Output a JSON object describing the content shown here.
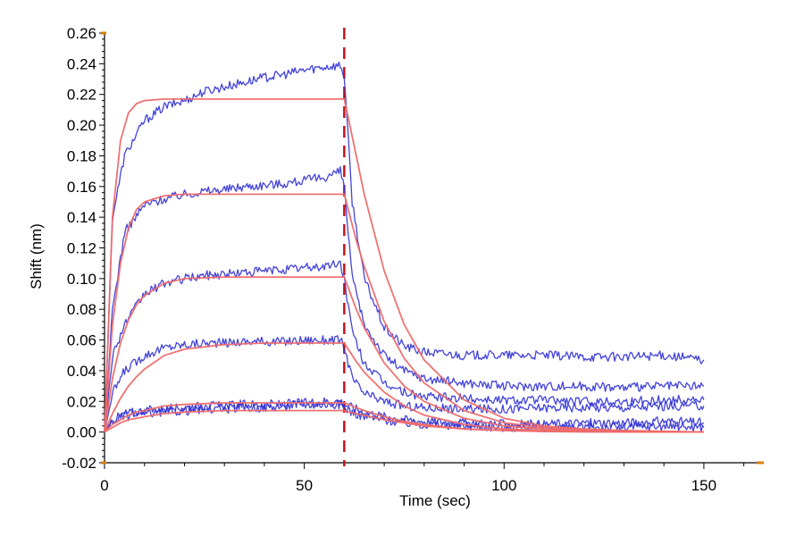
{
  "chart_data": {
    "type": "line",
    "title": "",
    "xlabel": "Time (sec)",
    "ylabel": "Shift (nm)",
    "xlim": [
      0,
      165
    ],
    "ylim": [
      -0.02,
      0.26
    ],
    "xticks": [
      0,
      50,
      100,
      150
    ],
    "yticks": [
      -0.02,
      0.0,
      0.02,
      0.04,
      0.06,
      0.08,
      0.1,
      0.12,
      0.14,
      0.16,
      0.18,
      0.2,
      0.22,
      0.24,
      0.26
    ],
    "grid": false,
    "legend": "none",
    "association_end_marker_x": 60,
    "colors": {
      "measured": "#2f2fd6",
      "fit": "#ee6a6a",
      "marker": "#c0141e",
      "axis_end_ticks": "#e07b00"
    },
    "series": [
      {
        "kind": "measured",
        "x": [
          0,
          2,
          5,
          10,
          15,
          20,
          25,
          30,
          35,
          40,
          45,
          50,
          55,
          59,
          60,
          62,
          65,
          70,
          75,
          80,
          90,
          100,
          110,
          120,
          130,
          140,
          150
        ],
        "y": [
          0.0,
          0.14,
          0.18,
          0.203,
          0.212,
          0.216,
          0.222,
          0.225,
          0.228,
          0.231,
          0.233,
          0.236,
          0.238,
          0.239,
          0.232,
          0.15,
          0.1,
          0.068,
          0.056,
          0.052,
          0.05,
          0.05,
          0.05,
          0.049,
          0.049,
          0.05,
          0.047
        ]
      },
      {
        "kind": "measured",
        "x": [
          0,
          2,
          5,
          10,
          15,
          20,
          25,
          30,
          35,
          40,
          45,
          50,
          55,
          59,
          60,
          62,
          65,
          70,
          75,
          80,
          90,
          100,
          110,
          120,
          130,
          140,
          150
        ],
        "y": [
          0.0,
          0.08,
          0.13,
          0.148,
          0.152,
          0.155,
          0.157,
          0.158,
          0.16,
          0.161,
          0.162,
          0.164,
          0.166,
          0.17,
          0.16,
          0.1,
          0.07,
          0.05,
          0.04,
          0.035,
          0.032,
          0.03,
          0.03,
          0.03,
          0.029,
          0.03,
          0.03
        ]
      },
      {
        "kind": "measured",
        "x": [
          0,
          2,
          5,
          10,
          15,
          20,
          25,
          30,
          35,
          40,
          45,
          50,
          55,
          59,
          60,
          62,
          65,
          70,
          75,
          80,
          90,
          100,
          110,
          120,
          130,
          140,
          150
        ],
        "y": [
          0.0,
          0.05,
          0.07,
          0.09,
          0.097,
          0.1,
          0.102,
          0.103,
          0.104,
          0.105,
          0.106,
          0.107,
          0.108,
          0.11,
          0.1,
          0.065,
          0.045,
          0.032,
          0.026,
          0.023,
          0.022,
          0.021,
          0.021,
          0.02,
          0.02,
          0.021,
          0.021
        ]
      },
      {
        "kind": "measured",
        "x": [
          0,
          2,
          5,
          10,
          15,
          20,
          25,
          30,
          35,
          40,
          45,
          50,
          55,
          59,
          60,
          62,
          65,
          70,
          75,
          80,
          90,
          100,
          110,
          120,
          130,
          140,
          150
        ],
        "y": [
          0.0,
          0.025,
          0.04,
          0.05,
          0.055,
          0.057,
          0.058,
          0.058,
          0.059,
          0.059,
          0.059,
          0.06,
          0.06,
          0.06,
          0.055,
          0.035,
          0.025,
          0.02,
          0.017,
          0.016,
          0.015,
          0.015,
          0.016,
          0.016,
          0.016,
          0.017,
          0.017
        ]
      },
      {
        "kind": "measured",
        "x": [
          0,
          2,
          5,
          10,
          15,
          20,
          25,
          30,
          35,
          40,
          45,
          50,
          55,
          59,
          60,
          62,
          65,
          70,
          75,
          80,
          90,
          100,
          110,
          120,
          130,
          140,
          150
        ],
        "y": [
          0.0,
          0.008,
          0.012,
          0.014,
          0.015,
          0.016,
          0.017,
          0.017,
          0.018,
          0.018,
          0.018,
          0.019,
          0.02,
          0.02,
          0.018,
          0.016,
          0.013,
          0.01,
          0.008,
          0.007,
          0.006,
          0.005,
          0.005,
          0.006,
          0.006,
          0.007,
          0.006
        ]
      },
      {
        "kind": "measured",
        "x": [
          0,
          2,
          5,
          10,
          15,
          20,
          25,
          30,
          35,
          40,
          45,
          50,
          55,
          59,
          60,
          62,
          65,
          70,
          75,
          80,
          90,
          100,
          110,
          120,
          130,
          140,
          150
        ],
        "y": [
          0.0,
          0.007,
          0.01,
          0.012,
          0.013,
          0.014,
          0.015,
          0.015,
          0.016,
          0.016,
          0.017,
          0.018,
          0.018,
          0.018,
          0.016,
          0.013,
          0.01,
          0.008,
          0.006,
          0.005,
          0.004,
          0.003,
          0.003,
          0.003,
          0.003,
          0.004,
          0.003
        ]
      },
      {
        "kind": "fit",
        "x": [
          0,
          2,
          4,
          6,
          8,
          10,
          15,
          20,
          30,
          40,
          50,
          60,
          61,
          63,
          65,
          70,
          75,
          80,
          90,
          100,
          110,
          120,
          130,
          140,
          150
        ],
        "y": [
          0.0,
          0.14,
          0.19,
          0.208,
          0.214,
          0.216,
          0.217,
          0.217,
          0.217,
          0.217,
          0.217,
          0.217,
          0.205,
          0.18,
          0.155,
          0.105,
          0.07,
          0.047,
          0.021,
          0.009,
          0.004,
          0.002,
          0.001,
          0.0005,
          0.0
        ]
      },
      {
        "kind": "fit",
        "x": [
          0,
          2,
          4,
          6,
          8,
          10,
          15,
          20,
          30,
          40,
          50,
          60,
          61,
          63,
          65,
          70,
          75,
          80,
          90,
          100,
          110,
          120,
          130,
          140,
          150
        ],
        "y": [
          0.0,
          0.07,
          0.11,
          0.133,
          0.145,
          0.15,
          0.154,
          0.155,
          0.155,
          0.155,
          0.155,
          0.155,
          0.145,
          0.125,
          0.108,
          0.072,
          0.048,
          0.032,
          0.014,
          0.006,
          0.003,
          0.0013,
          0.0006,
          0.0003,
          0.0
        ]
      },
      {
        "kind": "fit",
        "x": [
          0,
          2,
          4,
          6,
          8,
          10,
          15,
          20,
          30,
          40,
          50,
          60,
          61,
          63,
          65,
          70,
          75,
          80,
          90,
          100,
          110,
          120,
          130,
          140,
          150
        ],
        "y": [
          0.0,
          0.035,
          0.058,
          0.073,
          0.083,
          0.089,
          0.097,
          0.1,
          0.101,
          0.101,
          0.101,
          0.101,
          0.094,
          0.08,
          0.068,
          0.045,
          0.03,
          0.02,
          0.009,
          0.004,
          0.002,
          0.0008,
          0.0004,
          0.0002,
          0.0
        ]
      },
      {
        "kind": "fit",
        "x": [
          0,
          2,
          4,
          6,
          8,
          10,
          15,
          20,
          30,
          40,
          50,
          60,
          61,
          63,
          65,
          70,
          75,
          80,
          90,
          100,
          110,
          120,
          130,
          140,
          150
        ],
        "y": [
          0.0,
          0.012,
          0.022,
          0.03,
          0.036,
          0.041,
          0.05,
          0.054,
          0.057,
          0.058,
          0.058,
          0.058,
          0.054,
          0.046,
          0.039,
          0.026,
          0.017,
          0.011,
          0.005,
          0.002,
          0.001,
          0.0005,
          0.0002,
          0.0001,
          0.0
        ]
      },
      {
        "kind": "fit",
        "x": [
          0,
          2,
          4,
          6,
          8,
          10,
          15,
          20,
          30,
          40,
          50,
          60,
          61,
          63,
          65,
          70,
          75,
          80,
          90,
          100,
          110,
          120,
          130,
          140,
          150
        ],
        "y": [
          0.0,
          0.005,
          0.008,
          0.011,
          0.013,
          0.014,
          0.017,
          0.018,
          0.019,
          0.019,
          0.019,
          0.019,
          0.018,
          0.016,
          0.014,
          0.01,
          0.007,
          0.005,
          0.002,
          0.001,
          0.0005,
          0.0002,
          0.0001,
          0.0,
          0.0
        ]
      },
      {
        "kind": "fit",
        "x": [
          0,
          2,
          4,
          6,
          8,
          10,
          15,
          20,
          30,
          40,
          50,
          60,
          61,
          63,
          65,
          70,
          75,
          80,
          90,
          100,
          110,
          120,
          130,
          140,
          150
        ],
        "y": [
          0.0,
          0.003,
          0.006,
          0.008,
          0.009,
          0.01,
          0.012,
          0.013,
          0.014,
          0.014,
          0.014,
          0.014,
          0.013,
          0.012,
          0.011,
          0.008,
          0.006,
          0.004,
          0.002,
          0.001,
          0.0004,
          0.0002,
          0.0001,
          0.0,
          0.0
        ]
      }
    ]
  }
}
